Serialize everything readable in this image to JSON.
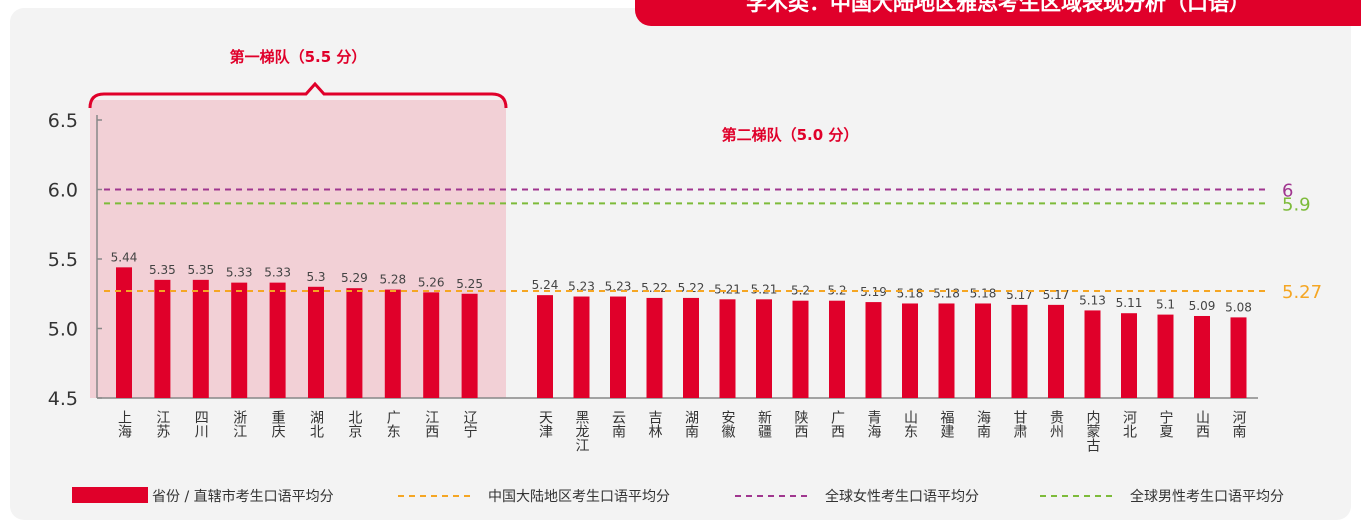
{
  "chart_data": {
    "type": "bar",
    "title": "学术类：中国大陆地区雅思考生区域表现分析（口语）",
    "categories": [
      "上海",
      "江苏",
      "四川",
      "浙江",
      "重庆",
      "湖北",
      "北京",
      "广东",
      "江西",
      "辽宁",
      "天津",
      "黑龙江",
      "云南",
      "吉林",
      "湖南",
      "安徽",
      "新疆",
      "陕西",
      "广西",
      "青海",
      "山东",
      "福建",
      "海南",
      "甘肃",
      "贵州",
      "内蒙古",
      "河北",
      "宁夏",
      "山西",
      "河南"
    ],
    "series": [
      {
        "name": "省份 / 直辖市考生口语平均分",
        "color": "#e0002a",
        "values": [
          5.44,
          5.35,
          5.35,
          5.33,
          5.33,
          5.3,
          5.29,
          5.28,
          5.26,
          5.25,
          5.24,
          5.23,
          5.23,
          5.22,
          5.22,
          5.21,
          5.21,
          5.2,
          5.2,
          5.19,
          5.18,
          5.18,
          5.18,
          5.17,
          5.17,
          5.13,
          5.11,
          5.1,
          5.09,
          5.08
        ]
      }
    ],
    "reference_lines": [
      {
        "name": "中国大陆地区考生口语平均分",
        "value": 5.27,
        "color": "#f5a623"
      },
      {
        "name": "全球女性考生口语平均分",
        "value": 6,
        "color": "#a0368f"
      },
      {
        "name": "全球男性考生口语平均分",
        "value": 5.9,
        "color": "#7dbb3a"
      }
    ],
    "annotations": [
      "第一梯队（5.5 分）",
      "第二梯队（5.0 分）"
    ],
    "ylim": [
      4.5,
      6.5
    ],
    "yticks": [
      4.5,
      {
        "value": 5,
        "label": "5.0"
      },
      5.5,
      {
        "value": 6,
        "label": "6.0"
      },
      6.5
    ]
  }
}
